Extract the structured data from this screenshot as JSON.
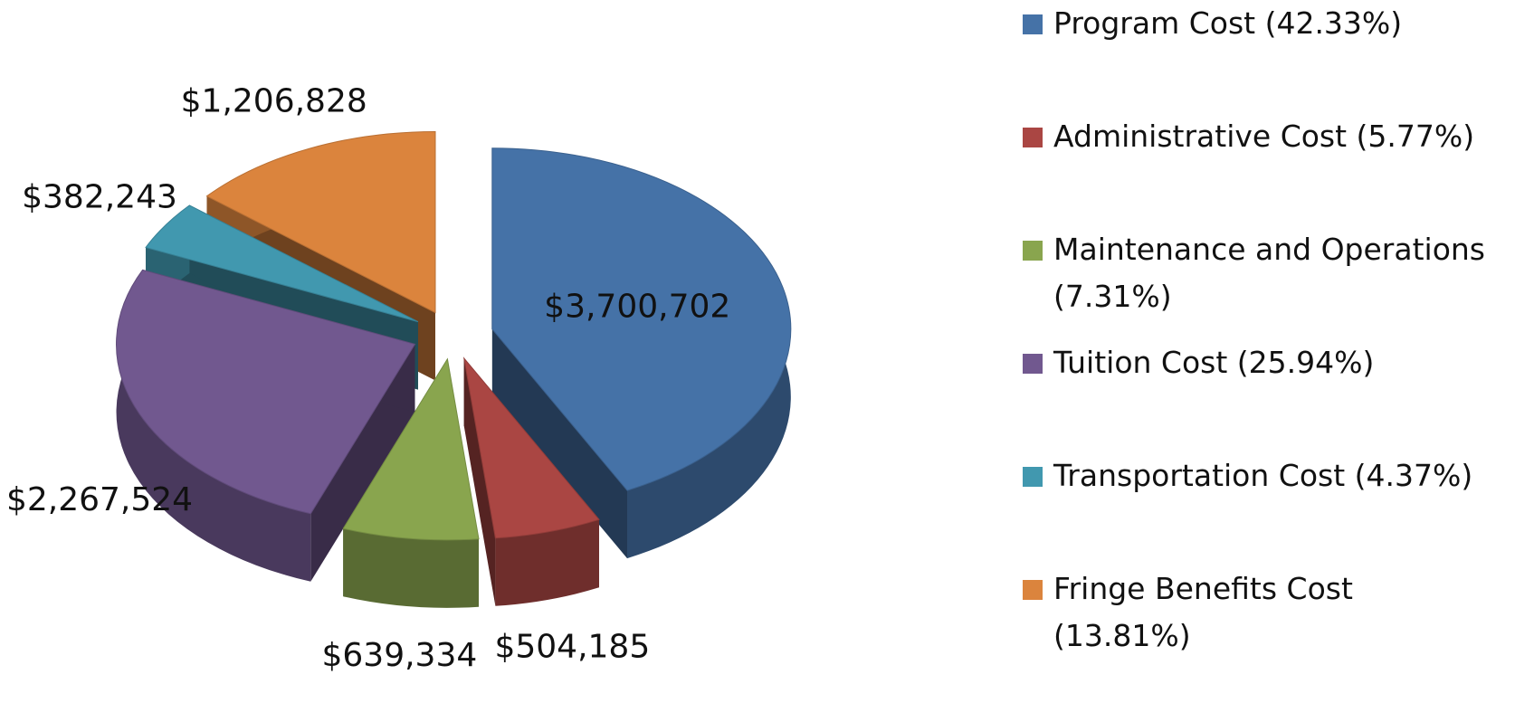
{
  "chart_data": {
    "type": "pie",
    "categories": [
      "Program Cost  (42.33%)",
      "Administrative Cost (5.77%)",
      "Maintenance and Operations (7.31%)",
      "Tuition Cost  (25.94%)",
      "Transportation Cost  (4.37%)",
      "Fringe Benefits Cost  (13.81%)"
    ],
    "values": [
      3700702,
      504185,
      639334,
      2267524,
      382243,
      1206828
    ],
    "value_labels": [
      "$3,700,702",
      "$504,185",
      "$639,334",
      "$2,267,524",
      "$382,243",
      "$1,206,828"
    ],
    "colors": [
      "#4572a7",
      "#aa4643",
      "#89a54e",
      "#71588f",
      "#4198af",
      "#db843d"
    ],
    "legend": "right"
  }
}
